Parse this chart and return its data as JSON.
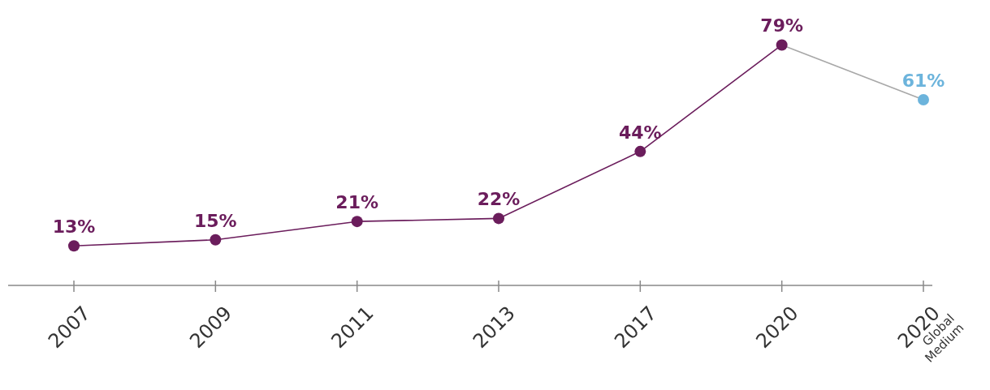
{
  "chart_data": {
    "type": "line",
    "categories": [
      "2007",
      "2009",
      "2011",
      "2013",
      "2017",
      "2020",
      "2020\nGlobal\nMedium"
    ],
    "marker": "circle",
    "series": [
      {
        "color": "#a8a8a8",
        "values": [
          null,
          null,
          null,
          null,
          null,
          79,
          61
        ],
        "marker": "none"
      },
      {
        "color": "#6b1d5c",
        "values": [
          13,
          15,
          21,
          22,
          44,
          79,
          null
        ],
        "value_labels": [
          "13%",
          "15%",
          "21%",
          "22%",
          "44%",
          "79%",
          null
        ]
      },
      {
        "color": "#6cb4dc",
        "values": [
          null,
          null,
          null,
          null,
          null,
          null,
          61
        ],
        "value_labels": [
          null,
          null,
          null,
          null,
          null,
          null,
          "61%"
        ]
      }
    ]
  }
}
